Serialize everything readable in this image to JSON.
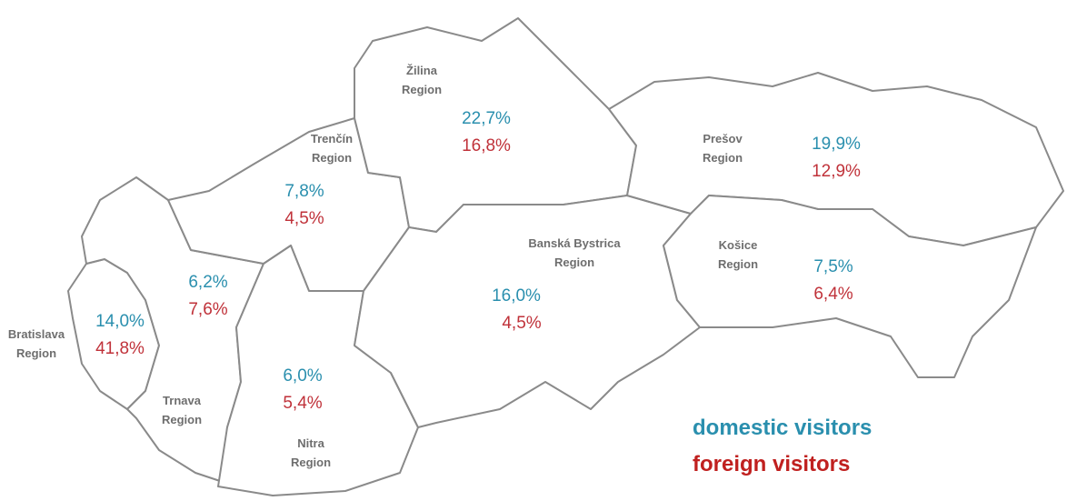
{
  "regions": [
    {
      "name": [
        "Žilina",
        "Region"
      ],
      "domestic": "22,7%",
      "foreign": "16,8%"
    },
    {
      "name": [
        "Trenčín",
        "Region"
      ],
      "domestic": "7,8%",
      "foreign": "4,5%"
    },
    {
      "name": [
        "Prešov",
        "Region"
      ],
      "domestic": "19,9%",
      "foreign": "12,9%"
    },
    {
      "name": [
        "Banská Bystrica",
        "Region"
      ],
      "domestic": "16,0%",
      "foreign": "4,5%"
    },
    {
      "name": [
        "Košice",
        "Region"
      ],
      "domestic": "7,5%",
      "foreign": "6,4%"
    },
    {
      "name": [
        "Trnava",
        "Region"
      ],
      "domestic": "6,2%",
      "foreign": "7,6%"
    },
    {
      "name": [
        "Bratislava",
        "Region"
      ],
      "domestic": "14,0%",
      "foreign": "41,8%"
    },
    {
      "name": [
        "Nitra",
        "Region"
      ],
      "domestic": "6,0%",
      "foreign": "5,4%"
    }
  ],
  "legend": {
    "domestic": "domestic visitors",
    "foreign": "foreign visitors"
  }
}
